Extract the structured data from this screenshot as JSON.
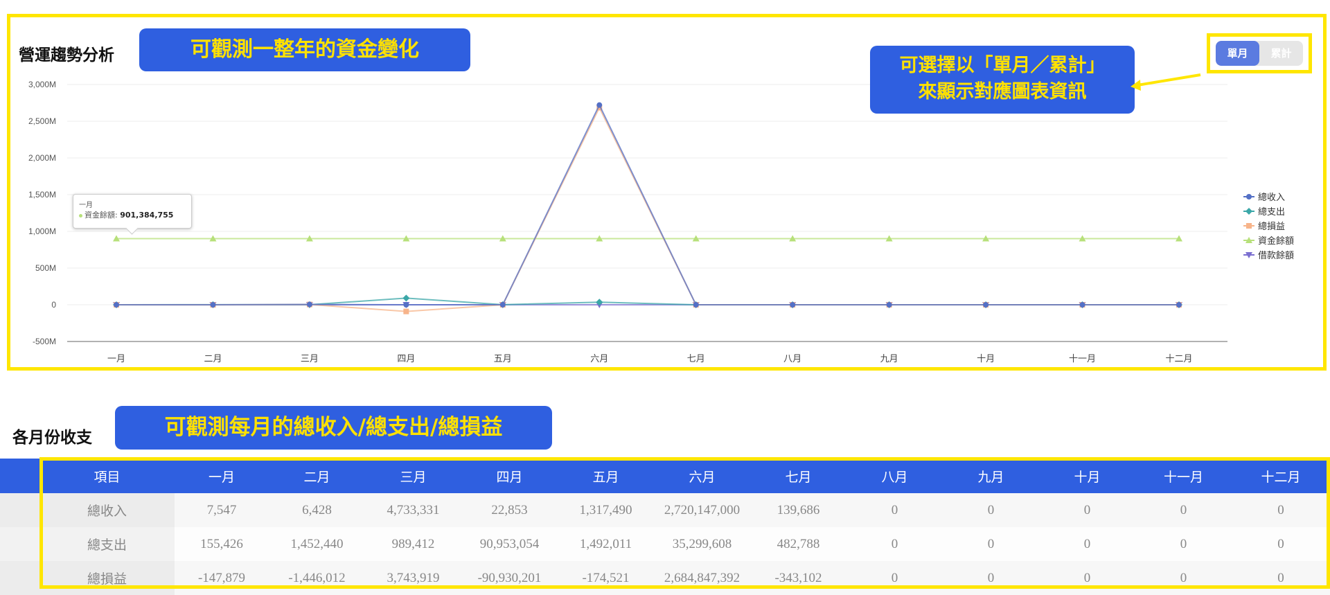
{
  "trend_section": {
    "title": "營運趨勢分析",
    "callout": "可觀測一整年的資金變化",
    "toggle_callout_line1": "可選擇以「單月／累計」",
    "toggle_callout_line2": "來顯示對應圖表資訊",
    "toggle": {
      "monthly": "單月",
      "cumulative": "累計",
      "selected": "單月"
    }
  },
  "tooltip": {
    "title": "一月",
    "label": "資金餘額:",
    "value": "901,384,755"
  },
  "chart_data": {
    "type": "line",
    "x": [
      "一月",
      "二月",
      "三月",
      "四月",
      "五月",
      "六月",
      "七月",
      "八月",
      "九月",
      "十月",
      "十一月",
      "十二月"
    ],
    "ylim": [
      -500,
      3000
    ],
    "yunit": "M",
    "y_ticks": [
      "3,000M",
      "2,500M",
      "2,000M",
      "1,500M",
      "1,000M",
      "500M",
      "0",
      "-500M"
    ],
    "legend_position": "right",
    "series": [
      {
        "name": "總收入",
        "color": "#5470C6",
        "marker": "circle",
        "values": [
          0.0075,
          0.0064,
          4.73,
          0.0229,
          1.32,
          2720.15,
          0.14,
          0,
          0,
          0,
          0,
          0
        ]
      },
      {
        "name": "總支出",
        "color": "#3BA7A8",
        "marker": "diamond",
        "values": [
          0.155,
          1.45,
          0.99,
          90.95,
          1.49,
          35.3,
          0.48,
          0,
          0,
          0,
          0,
          0
        ]
      },
      {
        "name": "總損益",
        "color": "#F7B48A",
        "marker": "square",
        "values": [
          -0.148,
          -1.45,
          3.74,
          -90.93,
          -0.17,
          2684.85,
          -0.34,
          0,
          0,
          0,
          0,
          0
        ]
      },
      {
        "name": "資金餘額",
        "color": "#B7E07A",
        "marker": "triangle",
        "values": [
          901.38,
          901,
          901,
          901,
          901,
          901,
          901,
          901,
          901,
          901,
          901,
          901
        ]
      },
      {
        "name": "借款餘額",
        "color": "#7B6FD0",
        "marker": "triangle-down",
        "values": [
          0,
          0,
          0,
          0,
          0,
          0,
          0,
          0,
          0,
          0,
          0,
          0
        ]
      }
    ]
  },
  "monthly_section": {
    "title": "各月份收支",
    "callout": "可觀測每月的總收入/總支出/總損益",
    "headers": [
      "項目",
      "一月",
      "二月",
      "三月",
      "四月",
      "五月",
      "六月",
      "七月",
      "八月",
      "九月",
      "十月",
      "十一月",
      "十二月"
    ],
    "rows": [
      [
        "總收入",
        "7,547",
        "6,428",
        "4,733,331",
        "22,853",
        "1,317,490",
        "2,720,147,000",
        "139,686",
        "0",
        "0",
        "0",
        "0",
        "0"
      ],
      [
        "總支出",
        "155,426",
        "1,452,440",
        "989,412",
        "90,953,054",
        "1,492,011",
        "35,299,608",
        "482,788",
        "0",
        "0",
        "0",
        "0",
        "0"
      ],
      [
        "總損益",
        "-147,879",
        "-1,446,012",
        "3,743,919",
        "-90,930,201",
        "-174,521",
        "2,684,847,392",
        "-343,102",
        "0",
        "0",
        "0",
        "0",
        "0"
      ]
    ]
  },
  "colors": {
    "highlight_border": "#FFE600",
    "callout_bg": "#2F5FE0",
    "callout_text": "#FFE100",
    "table_header": "#2F5FE0"
  }
}
